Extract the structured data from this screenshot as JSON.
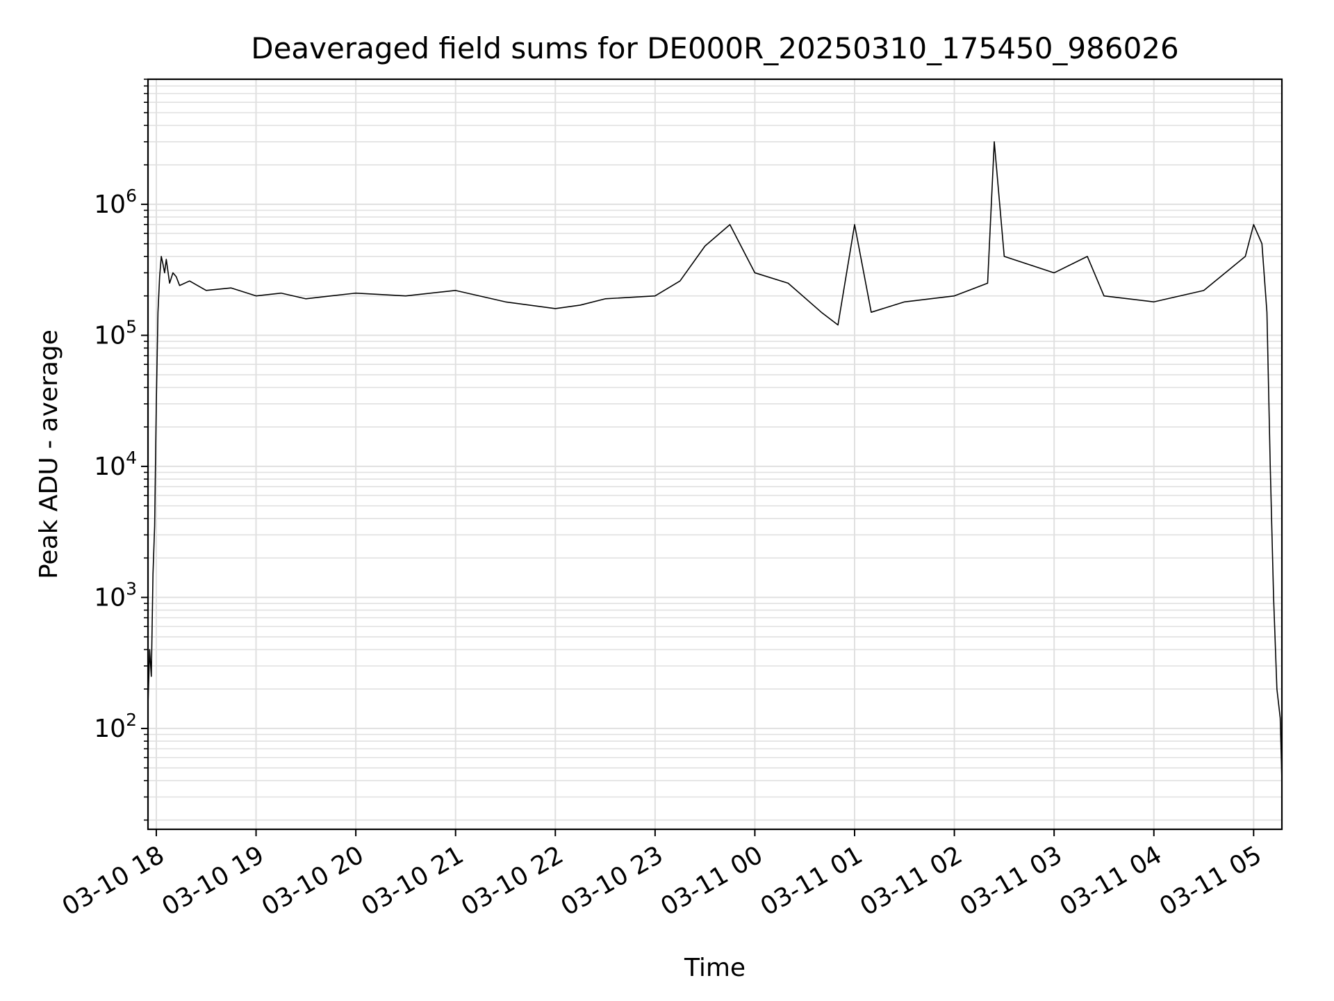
{
  "chart_data": {
    "type": "line",
    "title": "Deaveraged field sums for DE000R_20250310_175450_986026",
    "xlabel": "Time",
    "ylabel": "Peak ADU - average",
    "yscale": "log",
    "ylim": [
      17,
      9000000
    ],
    "xlim": [
      "2025-03-10 17:55",
      "2025-03-11 05:17"
    ],
    "grid": true,
    "line_color": "#000000",
    "grid_color": "#e0e0e0",
    "x_ticks": [
      {
        "value": "2025-03-10 18:00",
        "label": "03-10 18"
      },
      {
        "value": "2025-03-10 19:00",
        "label": "03-10 19"
      },
      {
        "value": "2025-03-10 20:00",
        "label": "03-10 20"
      },
      {
        "value": "2025-03-10 21:00",
        "label": "03-10 21"
      },
      {
        "value": "2025-03-10 22:00",
        "label": "03-10 22"
      },
      {
        "value": "2025-03-10 23:00",
        "label": "03-10 23"
      },
      {
        "value": "2025-03-11 00:00",
        "label": "03-11 00"
      },
      {
        "value": "2025-03-11 01:00",
        "label": "03-11 01"
      },
      {
        "value": "2025-03-11 02:00",
        "label": "03-11 02"
      },
      {
        "value": "2025-03-11 03:00",
        "label": "03-11 03"
      },
      {
        "value": "2025-03-11 04:00",
        "label": "03-11 04"
      },
      {
        "value": "2025-03-11 05:00",
        "label": "03-11 05"
      }
    ],
    "y_ticks": [
      {
        "value": 100,
        "base": "10",
        "exp": "2"
      },
      {
        "value": 1000,
        "base": "10",
        "exp": "3"
      },
      {
        "value": 10000,
        "base": "10",
        "exp": "4"
      },
      {
        "value": 100000,
        "base": "10",
        "exp": "5"
      },
      {
        "value": 1000000,
        "base": "10",
        "exp": "6"
      }
    ],
    "series": [
      {
        "x": [
          "2025-03-10 17:55",
          "2025-03-10 17:56",
          "2025-03-10 17:57",
          "2025-03-10 17:58",
          "2025-03-10 17:59",
          "2025-03-10 18:00",
          "2025-03-10 18:01",
          "2025-03-10 18:02",
          "2025-03-10 18:03",
          "2025-03-10 18:04",
          "2025-03-10 18:05",
          "2025-03-10 18:06",
          "2025-03-10 18:08",
          "2025-03-10 18:10",
          "2025-03-10 18:12",
          "2025-03-10 18:14",
          "2025-03-10 18:20",
          "2025-03-10 18:30",
          "2025-03-10 18:45",
          "2025-03-10 19:00",
          "2025-03-10 19:15",
          "2025-03-10 19:30",
          "2025-03-10 19:45",
          "2025-03-10 20:00",
          "2025-03-10 20:30",
          "2025-03-10 21:00",
          "2025-03-10 21:30",
          "2025-03-10 22:00",
          "2025-03-10 22:15",
          "2025-03-10 22:30",
          "2025-03-10 23:00",
          "2025-03-10 23:15",
          "2025-03-10 23:30",
          "2025-03-10 23:45",
          "2025-03-11 00:00",
          "2025-03-11 00:20",
          "2025-03-11 00:40",
          "2025-03-11 00:50",
          "2025-03-11 01:00",
          "2025-03-11 01:10",
          "2025-03-11 01:30",
          "2025-03-11 02:00",
          "2025-03-11 02:20",
          "2025-03-11 02:24",
          "2025-03-11 02:30",
          "2025-03-11 03:00",
          "2025-03-11 03:20",
          "2025-03-11 03:30",
          "2025-03-11 04:00",
          "2025-03-11 04:30",
          "2025-03-11 04:55",
          "2025-03-11 05:00",
          "2025-03-11 05:05",
          "2025-03-11 05:08",
          "2025-03-11 05:10",
          "2025-03-11 05:12",
          "2025-03-11 05:14",
          "2025-03-11 05:16",
          "2025-03-11 05:17"
        ],
        "y": [
          150,
          400,
          250,
          1500,
          3500,
          30000,
          150000,
          280000,
          400000,
          350000,
          300000,
          380000,
          250000,
          300000,
          280000,
          240000,
          260000,
          220000,
          230000,
          200000,
          210000,
          190000,
          200000,
          210000,
          200000,
          220000,
          180000,
          160000,
          170000,
          190000,
          200000,
          260000,
          480000,
          700000,
          300000,
          250000,
          150000,
          120000,
          700000,
          150000,
          180000,
          200000,
          250000,
          3000000,
          400000,
          300000,
          400000,
          200000,
          180000,
          220000,
          400000,
          700000,
          500000,
          150000,
          10000,
          1000,
          200,
          120,
          40
        ]
      }
    ]
  }
}
